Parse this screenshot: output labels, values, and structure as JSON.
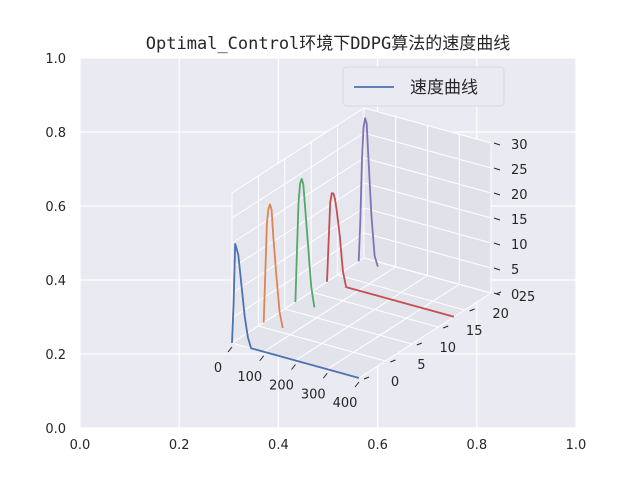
{
  "chart_data": {
    "type": "line",
    "projection": "3d",
    "title": "Optimal_Control环境下DDPG算法的速度曲线",
    "xlabel": "",
    "ylabel": "",
    "zlabel": "",
    "background_2d_axes": {
      "x_ticks": [
        "0.0",
        "0.2",
        "0.4",
        "0.6",
        "0.8",
        "1.0"
      ],
      "y_ticks": [
        "0.0",
        "0.2",
        "0.4",
        "0.6",
        "0.8",
        "1.0"
      ],
      "grid": true
    },
    "x_ticks": [
      "0",
      "100",
      "200",
      "300",
      "400"
    ],
    "y_ticks": [
      "0",
      "5",
      "10",
      "15",
      "20",
      "25"
    ],
    "z_ticks": [
      "0",
      "5",
      "10",
      "15",
      "20",
      "25",
      "30"
    ],
    "xlim": [
      0,
      400
    ],
    "ylim": [
      0,
      25
    ],
    "zlim": [
      0,
      30
    ],
    "legend": {
      "entries": [
        "速度曲线"
      ],
      "placement": "top-right"
    },
    "grid": true,
    "series": [
      {
        "color": "#4c72b0",
        "y": 0,
        "x": [
          0,
          5,
          10,
          15,
          20,
          25,
          30,
          40,
          50,
          60,
          400
        ],
        "z": [
          0,
          8,
          20,
          19,
          18,
          15,
          12,
          6,
          2,
          0,
          0
        ]
      },
      {
        "color": "#dd8452",
        "y": 6,
        "x": [
          0,
          5,
          10,
          15,
          20,
          25,
          30,
          40,
          50,
          60
        ],
        "z": [
          0,
          10,
          20,
          23,
          24,
          23,
          18,
          10,
          3,
          0
        ]
      },
      {
        "color": "#55a868",
        "y": 12,
        "x": [
          0,
          5,
          10,
          15,
          20,
          25,
          30,
          40,
          50,
          60
        ],
        "z": [
          0,
          10,
          20,
          24,
          25,
          24,
          20,
          12,
          4,
          0
        ]
      },
      {
        "color": "#c44e52",
        "y": 18,
        "x": [
          0,
          5,
          10,
          15,
          20,
          25,
          30,
          40,
          50,
          60,
          400
        ],
        "z": [
          0,
          8,
          16,
          18,
          18,
          17,
          15,
          10,
          3,
          0,
          0
        ]
      },
      {
        "color": "#8172b3",
        "y": 24,
        "x": [
          0,
          5,
          10,
          15,
          20,
          25,
          30,
          40,
          50,
          60
        ],
        "z": [
          0,
          8,
          20,
          27,
          29,
          28,
          22,
          10,
          2,
          0
        ]
      }
    ]
  }
}
